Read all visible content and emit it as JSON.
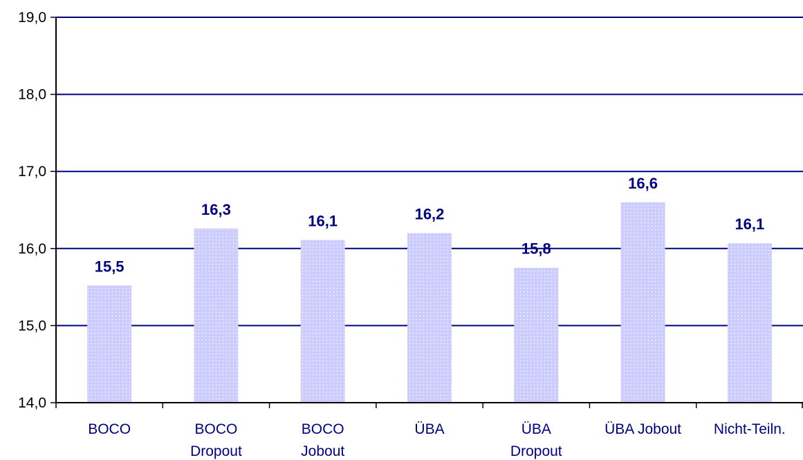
{
  "chart_data": {
    "type": "bar",
    "title": "",
    "xlabel": "",
    "ylabel": "",
    "ylim": [
      14.0,
      19.0
    ],
    "yticks": [
      "14,0",
      "15,0",
      "16,0",
      "17,0",
      "18,0",
      "19,0"
    ],
    "ytick_values": [
      14,
      15,
      16,
      17,
      18,
      19
    ],
    "grid": true,
    "legend": "none",
    "categories": [
      [
        "BOCO"
      ],
      [
        "BOCO",
        "Dropout"
      ],
      [
        "BOCO",
        "Jobout"
      ],
      [
        "ÜBA"
      ],
      [
        "ÜBA",
        "Dropout"
      ],
      [
        "ÜBA Jobout"
      ],
      [
        "Nicht-Teiln."
      ]
    ],
    "values": [
      15.52,
      16.26,
      16.11,
      16.2,
      15.75,
      16.6,
      16.07
    ],
    "data_labels": [
      "15,5",
      "16,3",
      "16,1",
      "16,2",
      "15,8",
      "16,6",
      "16,1"
    ],
    "colors": {
      "bar": "#ccccff",
      "bar_dot": "#ffffff",
      "grid": "#000080",
      "axis": "#000000",
      "label": "#000080"
    }
  }
}
